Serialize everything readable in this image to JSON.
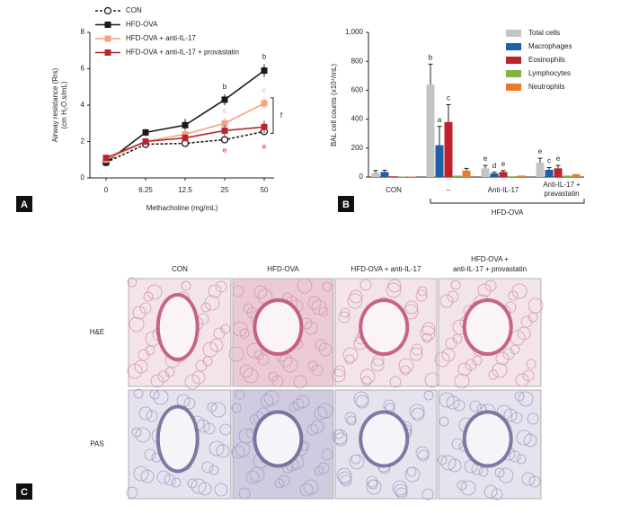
{
  "panel_labels": [
    "A",
    "B",
    "C"
  ],
  "chart_data": [
    {
      "type": "line",
      "xlabel": "Methacholine (mg/mL)",
      "ylabel": [
        "Airway resistance (Rrs)",
        "(cm H₂O.s/mL)"
      ],
      "categories": [
        "0",
        "6.25",
        "12.5",
        "25",
        "50"
      ],
      "ylim": [
        0,
        8
      ],
      "yticks": [
        0,
        2,
        4,
        6,
        8
      ],
      "bracket_label": "f",
      "series": [
        {
          "name": "CON",
          "color": "#1a1a1a",
          "marker": "circle-open",
          "dash": true,
          "values": [
            0.85,
            1.85,
            1.9,
            2.1,
            2.55
          ],
          "errors": [
            0.1,
            0.15,
            0.1,
            0.15,
            0.2
          ],
          "annotations": [
            null,
            null,
            null,
            null,
            null
          ]
        },
        {
          "name": "HFD-OVA",
          "color": "#1a1a1a",
          "marker": "square",
          "dash": false,
          "values": [
            0.85,
            2.5,
            2.9,
            4.3,
            5.9
          ],
          "errors": [
            0.1,
            0.2,
            0.35,
            0.3,
            0.35
          ],
          "annotations": [
            null,
            null,
            null,
            "b",
            "b"
          ]
        },
        {
          "name": "HFD-OVA + anti-IL-17",
          "color": "#f4a283",
          "marker": "square",
          "dash": false,
          "values": [
            1.0,
            2.0,
            2.4,
            3.0,
            4.1
          ],
          "errors": [
            0.1,
            0.2,
            0.25,
            0.3,
            0.3
          ],
          "annotations": [
            null,
            null,
            null,
            "c",
            "c"
          ]
        },
        {
          "name": "HFD-OVA + anti-IL-17 + provastatin",
          "color": "#b3282e",
          "marker": "square",
          "dash": false,
          "values": [
            1.1,
            2.0,
            2.2,
            2.6,
            2.8
          ],
          "errors": [
            0.1,
            0.2,
            0.2,
            0.3,
            0.35
          ],
          "annotations": [
            null,
            null,
            null,
            "e",
            "e"
          ]
        }
      ]
    },
    {
      "type": "bar",
      "ylabel": "BAL cell counts (x10⁴/mL)",
      "categories": [
        "CON",
        "–",
        "Anti-IL-17",
        "Anti-IL-17 + pravastatin"
      ],
      "group_label": "HFD-OVA",
      "ylim": [
        0,
        1000
      ],
      "yticks": [
        0,
        200,
        400,
        600,
        800,
        {
          "value": 1000,
          "label": "1,000"
        }
      ],
      "series": [
        {
          "name": "Total cells",
          "color": "#c4c4c4",
          "values": [
            30,
            640,
            60,
            100
          ],
          "errors": [
            15,
            140,
            20,
            30
          ],
          "annotations": [
            null,
            "b",
            "e",
            "e"
          ]
        },
        {
          "name": "Macrophages",
          "color": "#1f5ea8",
          "values": [
            35,
            220,
            25,
            50
          ],
          "errors": [
            12,
            130,
            8,
            15
          ],
          "annotations": [
            null,
            "a",
            "d",
            "c"
          ]
        },
        {
          "name": "Eosinophils",
          "color": "#c0222b",
          "values": [
            5,
            380,
            35,
            60
          ],
          "errors": [
            null,
            120,
            10,
            20
          ],
          "annotations": [
            null,
            "c",
            "e",
            "e"
          ]
        },
        {
          "name": "Lymphocytes",
          "color": "#82b34a",
          "values": [
            3,
            10,
            5,
            10
          ],
          "errors": [
            null,
            null,
            null,
            null
          ],
          "annotations": [
            null,
            null,
            null,
            null
          ]
        },
        {
          "name": "Neutrophils",
          "color": "#ea7a2b",
          "values": [
            3,
            45,
            10,
            20
          ],
          "errors": [
            null,
            15,
            null,
            null
          ],
          "annotations": [
            null,
            null,
            null,
            null
          ]
        }
      ]
    }
  ],
  "histology": {
    "columns": [
      [
        "CON"
      ],
      [
        "HFD-OVA"
      ],
      [
        "HFD-OVA + anti-IL-17"
      ],
      [
        "HFD-OVA +",
        "anti-IL-17 + provastatin"
      ]
    ],
    "rows": [
      "H&E",
      "PAS"
    ]
  }
}
